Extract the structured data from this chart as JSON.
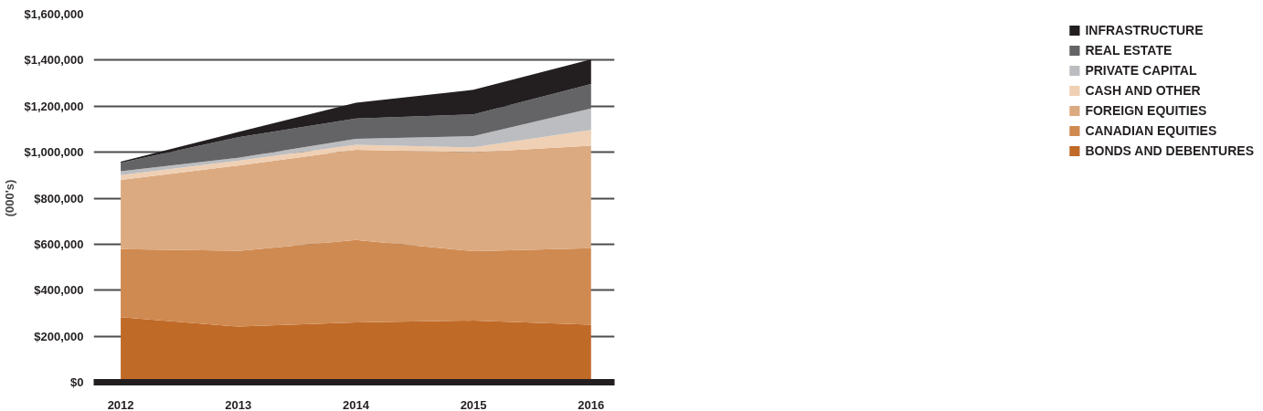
{
  "chart_data": {
    "type": "area",
    "stacked": true,
    "ylabel": "(000's)",
    "x": [
      2012,
      2013,
      2014,
      2015,
      2016
    ],
    "xlim": [
      2011.77,
      2016.2
    ],
    "xticks": [
      2012,
      2013,
      2014,
      2015,
      2016
    ],
    "ylim": [
      0,
      1600000
    ],
    "yticks": [
      {
        "value": 0,
        "label": "$0"
      },
      {
        "value": 200000,
        "label": "$200,000"
      },
      {
        "value": 400000,
        "label": "$400,000"
      },
      {
        "value": 600000,
        "label": "$600,000"
      },
      {
        "value": 800000,
        "label": "$800,000"
      },
      {
        "value": 1000000,
        "label": "$1,000,000"
      },
      {
        "value": 1200000,
        "label": "$1,200,000"
      },
      {
        "value": 1400000,
        "label": "$1,400,000"
      },
      {
        "value": 1600000,
        "label": "$1,600,000"
      }
    ],
    "grid": "y",
    "legend": "right",
    "series": [
      {
        "name": "BONDS AND DEBENTURES",
        "color": "#c06a28",
        "values": [
          283000,
          242000,
          260000,
          268000,
          250000
        ]
      },
      {
        "name": "CANADIAN EQUITIES",
        "color": "#cf8a51",
        "values": [
          296000,
          329000,
          358000,
          302000,
          333000
        ]
      },
      {
        "name": "FOREIGN EQUITIES",
        "color": "#dcaa80",
        "values": [
          300000,
          371000,
          392000,
          430000,
          445000
        ]
      },
      {
        "name": "CASH AND OTHER",
        "color": "#efd0b4",
        "values": [
          21000,
          21000,
          22000,
          21000,
          69000
        ]
      },
      {
        "name": "PRIVATE CAPITAL",
        "color": "#bcbdc0",
        "values": [
          17000,
          13000,
          26000,
          49000,
          93000
        ]
      },
      {
        "name": "REAL ESTATE",
        "color": "#646466",
        "values": [
          37000,
          89000,
          88000,
          94000,
          106000
        ]
      },
      {
        "name": "INFRASTRUCTURE",
        "color": "#231f20",
        "values": [
          5000,
          23000,
          69000,
          107000,
          107000
        ]
      }
    ]
  }
}
